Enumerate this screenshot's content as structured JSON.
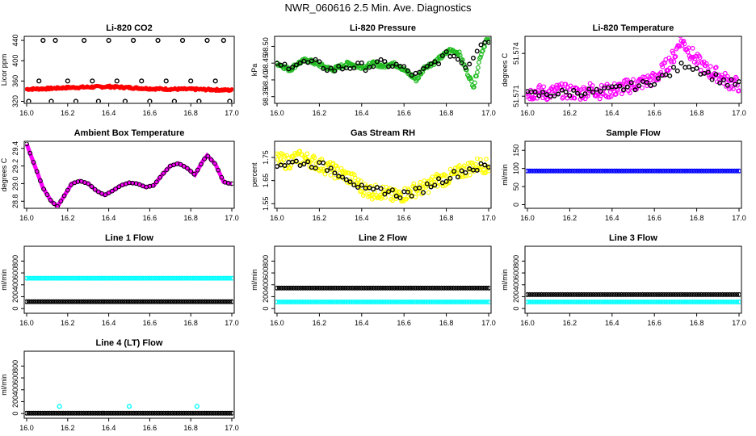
{
  "page_title": "NWR_060616  2.5 Min. Ave. Diagnostics",
  "colors": {
    "black": "#000000",
    "red": "#ff0000",
    "green": "#22bb22",
    "magenta": "#ff00ff",
    "yellow": "#ffff00",
    "cyan": "#00ffff",
    "blue": "#0000ff"
  },
  "x_axis": {
    "range": [
      16.0,
      17.0
    ],
    "ticks": [
      "16.0",
      "16.2",
      "16.4",
      "16.6",
      "16.8",
      "17.0"
    ]
  },
  "chart_data": [
    {
      "id": "co2",
      "type": "scatter",
      "title": "Li-820 CO2",
      "ylabel": "Licor ppm",
      "ylim": [
        316,
        448
      ],
      "yticks": [
        "320",
        "360",
        "400",
        "440"
      ],
      "series": [
        {
          "name": "line-flags",
          "color": "black",
          "x": [
            16.01,
            16.06,
            16.08,
            16.12,
            16.14,
            16.2,
            16.24,
            16.28,
            16.32,
            16.35,
            16.4,
            16.44,
            16.48,
            16.52,
            16.56,
            16.6,
            16.64,
            16.68,
            16.72,
            16.76,
            16.8,
            16.84,
            16.88,
            16.92,
            16.96,
            16.99
          ],
          "y": [
            320,
            360,
            440,
            320,
            440,
            360,
            320,
            440,
            360,
            320,
            440,
            360,
            320,
            440,
            360,
            320,
            440,
            360,
            320,
            440,
            360,
            320,
            440,
            360,
            440,
            320
          ]
        },
        {
          "name": "co2",
          "color": "red",
          "x": [
            16.0,
            16.1,
            16.2,
            16.3,
            16.4,
            16.5,
            16.6,
            16.7,
            16.8,
            16.9,
            17.0
          ],
          "y": [
            344,
            345,
            347,
            348,
            349,
            347,
            345,
            344,
            344,
            343,
            342
          ]
        }
      ]
    },
    {
      "id": "pressure",
      "type": "scatter",
      "title": "Li-820 Pressure",
      "ylabel": "kPa",
      "ylim": [
        98.33,
        98.53
      ],
      "yticks": [
        "98.35",
        "98.40",
        "98.45",
        "98.50"
      ],
      "series": [
        {
          "name": "pressure",
          "color": "green",
          "x": [
            16.0,
            16.03,
            16.06,
            16.1,
            16.14,
            16.18,
            16.22,
            16.26,
            16.3,
            16.34,
            16.38,
            16.42,
            16.46,
            16.5,
            16.54,
            16.58,
            16.62,
            16.66,
            16.7,
            16.74,
            16.78,
            16.82,
            16.86,
            16.9,
            16.93,
            16.96,
            16.99
          ],
          "y": [
            98.45,
            98.44,
            98.43,
            98.45,
            98.46,
            98.45,
            98.44,
            98.43,
            98.44,
            98.45,
            98.44,
            98.44,
            98.45,
            98.44,
            98.45,
            98.44,
            98.42,
            98.4,
            98.44,
            98.45,
            98.47,
            98.49,
            98.48,
            98.42,
            98.38,
            98.47,
            98.52
          ]
        },
        {
          "name": "reference",
          "color": "black",
          "x": [
            16.02,
            16.1,
            16.18,
            16.26,
            16.34,
            16.42,
            16.5,
            16.58,
            16.66,
            16.74,
            16.82,
            16.9,
            16.97
          ],
          "y": [
            98.44,
            98.45,
            98.45,
            98.43,
            98.44,
            98.44,
            98.45,
            98.44,
            98.41,
            98.45,
            98.48,
            98.44,
            98.52
          ]
        }
      ]
    },
    {
      "id": "temp",
      "type": "scatter",
      "title": "Li-820 Temperature",
      "ylabel": "degrees C",
      "ylim": [
        51.5705,
        51.5752
      ],
      "yticks": [
        "51.571",
        "51.574"
      ],
      "series": [
        {
          "name": "temperature",
          "color": "magenta",
          "x": [
            16.0,
            16.05,
            16.1,
            16.15,
            16.2,
            16.25,
            16.3,
            16.35,
            16.4,
            16.45,
            16.5,
            16.55,
            16.6,
            16.65,
            16.7,
            16.72,
            16.75,
            16.8,
            16.85,
            16.9,
            16.95,
            17.0
          ],
          "y": [
            51.5712,
            51.5713,
            51.5712,
            51.5714,
            51.5713,
            51.5712,
            51.5715,
            51.5713,
            51.5714,
            51.5716,
            51.5718,
            51.572,
            51.5722,
            51.573,
            51.574,
            51.575,
            51.5745,
            51.5735,
            51.5728,
            51.5725,
            51.572,
            51.5718
          ]
        },
        {
          "name": "reference",
          "color": "black",
          "x": [
            16.05,
            16.15,
            16.25,
            16.35,
            16.45,
            16.55,
            16.65,
            16.75,
            16.85,
            16.95
          ],
          "y": [
            51.5711,
            51.5712,
            51.5713,
            51.5713,
            51.5716,
            51.5718,
            51.5724,
            51.5733,
            51.5726,
            51.5719
          ]
        }
      ]
    },
    {
      "id": "ambient",
      "type": "line",
      "title": "Ambient Box Temperature",
      "ylabel": "degrees C",
      "ylim": [
        28.72,
        29.48
      ],
      "yticks": [
        "28.8",
        "29.0",
        "29.2",
        "29.4"
      ],
      "series": [
        {
          "name": "ambient",
          "color": "magenta",
          "x": [
            16.0,
            16.04,
            16.08,
            16.12,
            16.15,
            16.18,
            16.22,
            16.26,
            16.3,
            16.34,
            16.38,
            16.42,
            16.46,
            16.5,
            16.54,
            16.58,
            16.62,
            16.66,
            16.7,
            16.74,
            16.78,
            16.82,
            16.86,
            16.88,
            16.92,
            16.96,
            16.99
          ],
          "y": [
            29.45,
            29.2,
            28.95,
            28.8,
            28.74,
            28.85,
            29.0,
            29.03,
            29.0,
            28.92,
            28.87,
            28.92,
            28.98,
            29.01,
            29.0,
            28.96,
            28.98,
            29.1,
            29.2,
            29.23,
            29.18,
            29.1,
            29.26,
            29.32,
            29.22,
            29.02,
            29.0
          ]
        }
      ]
    },
    {
      "id": "rh",
      "type": "scatter",
      "title": "Gas Stream RH",
      "ylabel": "percent",
      "ylim": [
        1.53,
        1.82
      ],
      "yticks": [
        "1.55",
        "1.65",
        "1.75"
      ],
      "series": [
        {
          "name": "rh",
          "color": "yellow",
          "x": [
            16.0,
            16.05,
            16.1,
            16.15,
            16.2,
            16.25,
            16.3,
            16.35,
            16.4,
            16.45,
            16.5,
            16.55,
            16.6,
            16.65,
            16.7,
            16.75,
            16.8,
            16.85,
            16.9,
            16.95,
            17.0
          ],
          "y": [
            1.74,
            1.73,
            1.75,
            1.74,
            1.72,
            1.7,
            1.68,
            1.66,
            1.62,
            1.6,
            1.6,
            1.58,
            1.59,
            1.61,
            1.62,
            1.65,
            1.66,
            1.68,
            1.7,
            1.72,
            1.71
          ]
        },
        {
          "name": "reference",
          "color": "black",
          "x": [
            16.02,
            16.1,
            16.18,
            16.26,
            16.34,
            16.42,
            16.5,
            16.58,
            16.66,
            16.74,
            16.82,
            16.9,
            16.98
          ],
          "y": [
            1.72,
            1.73,
            1.72,
            1.7,
            1.66,
            1.6,
            1.61,
            1.59,
            1.6,
            1.64,
            1.67,
            1.7,
            1.71
          ]
        }
      ]
    },
    {
      "id": "sample",
      "type": "scatter",
      "title": "Sample Flow",
      "ylabel": "ml/min",
      "ylim": [
        -10,
        175
      ],
      "yticks": [
        "0",
        "50",
        "100",
        "150"
      ],
      "series": [
        {
          "name": "sample",
          "color": "blue",
          "x": [
            16.0,
            17.0
          ],
          "y": [
            93,
            93
          ],
          "dense": true
        }
      ]
    },
    {
      "id": "line1",
      "type": "scatter",
      "title": "Line 1 Flow",
      "ylabel": "ml/min",
      "ylim": [
        -80,
        1050
      ],
      "yticks": [
        "0",
        "200",
        "400",
        "600",
        "800"
      ],
      "series": [
        {
          "name": "line1-cyan",
          "color": "cyan",
          "x": [
            16.0,
            17.0
          ],
          "y": [
            510,
            510
          ],
          "dense": true
        },
        {
          "name": "line1-black",
          "color": "black",
          "x": [
            16.0,
            17.0
          ],
          "y": [
            115,
            115
          ],
          "dense": true
        }
      ]
    },
    {
      "id": "line2",
      "type": "scatter",
      "title": "Line 2 Flow",
      "ylabel": "ml/min",
      "ylim": [
        -80,
        1050
      ],
      "yticks": [
        "0",
        "200",
        "400",
        "600",
        "800"
      ],
      "series": [
        {
          "name": "line2-black",
          "color": "black",
          "x": [
            16.0,
            17.0
          ],
          "y": [
            345,
            345
          ],
          "dense": true
        },
        {
          "name": "line2-cyan",
          "color": "cyan",
          "x": [
            16.0,
            17.0
          ],
          "y": [
            110,
            110
          ],
          "dense": true
        }
      ]
    },
    {
      "id": "line3",
      "type": "scatter",
      "title": "Line 3 Flow",
      "ylabel": "ml/min",
      "ylim": [
        -80,
        1050
      ],
      "yticks": [
        "0",
        "200",
        "400",
        "600",
        "800"
      ],
      "series": [
        {
          "name": "line3-black",
          "color": "black",
          "x": [
            16.0,
            17.0
          ],
          "y": [
            235,
            235
          ],
          "dense": true
        },
        {
          "name": "line3-cyan",
          "color": "cyan",
          "x": [
            16.0,
            17.0
          ],
          "y": [
            110,
            110
          ],
          "dense": true
        }
      ]
    },
    {
      "id": "line4",
      "type": "scatter",
      "title": "Line 4 (LT) Flow",
      "ylabel": "ml/min",
      "ylim": [
        -80,
        1050
      ],
      "yticks": [
        "0",
        "200",
        "400",
        "600",
        "800"
      ],
      "series": [
        {
          "name": "line4-black",
          "color": "black",
          "x": [
            16.0,
            17.0
          ],
          "y": [
            5,
            5
          ],
          "dense": true
        },
        {
          "name": "line4-spikes",
          "color": "cyan",
          "x": [
            16.16,
            16.5,
            16.83
          ],
          "y": [
            120,
            120,
            120
          ]
        }
      ]
    }
  ]
}
